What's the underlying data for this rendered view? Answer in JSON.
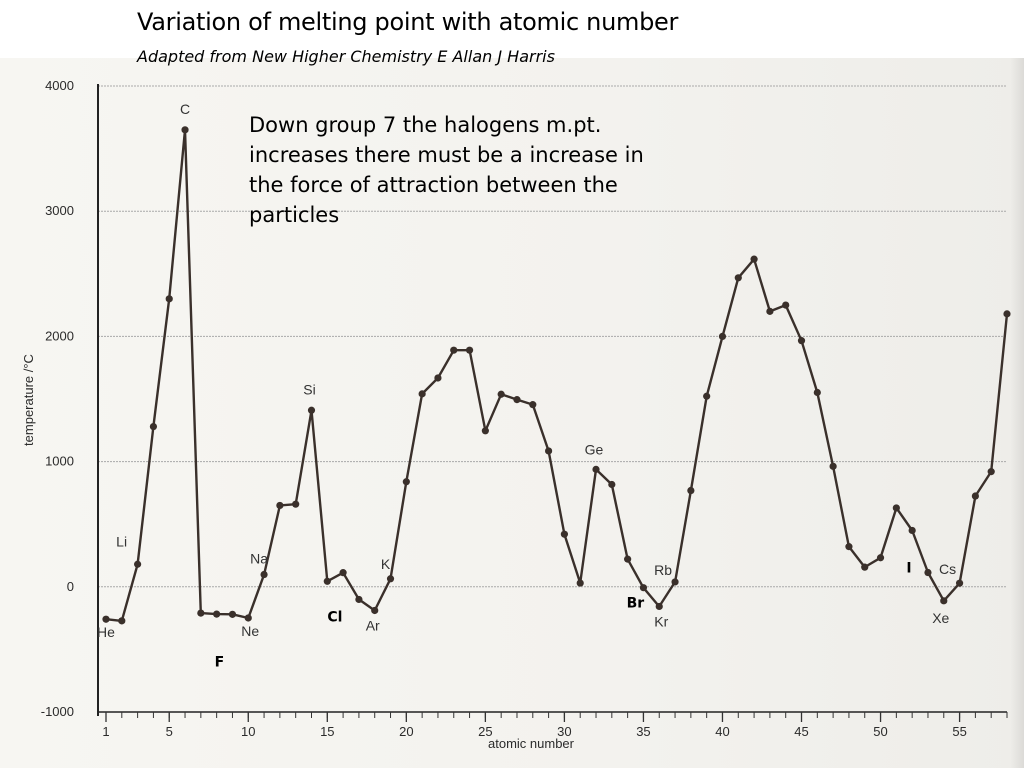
{
  "chart_data": {
    "type": "line",
    "title": "Variation of melting point with atomic number",
    "subtitle": "Adapted from New Higher Chemistry E Allan J Harris",
    "annotation": [
      "Down group 7 the halogens m.pt.",
      "increases there must be a increase in",
      "the force of attraction between the",
      "particles"
    ],
    "xlabel": "atomic number",
    "ylabel": "temperature /°C",
    "xlim": [
      1,
      58
    ],
    "ylim": [
      -1000,
      4000
    ],
    "xticks": [
      "1",
      "5",
      "10",
      "15",
      "20",
      "25",
      "30",
      "35",
      "40",
      "45",
      "50",
      "55"
    ],
    "yticks": [
      "4000",
      "3000",
      "2000",
      "1000",
      "0",
      "-1000"
    ],
    "grid": true,
    "series": [
      {
        "x": [
          1,
          2,
          3,
          4,
          5,
          6,
          7,
          8,
          9,
          10,
          11,
          12,
          13,
          14,
          15,
          16,
          17,
          18,
          19,
          20,
          21,
          22,
          23,
          24,
          25,
          26,
          27,
          28,
          29,
          30,
          31,
          32,
          33,
          34,
          35,
          36,
          37,
          38,
          39,
          40,
          41,
          42,
          43,
          44,
          45,
          46,
          47,
          48,
          49,
          50,
          51,
          52,
          53,
          54,
          55,
          56,
          57,
          58
        ],
        "y": [
          -259,
          -272,
          180,
          1280,
          2300,
          3650,
          -210,
          -218,
          -220,
          -249,
          98,
          650,
          660,
          1410,
          44,
          113,
          -101,
          -189,
          64,
          839,
          1541,
          1668,
          1890,
          1890,
          1246,
          1538,
          1495,
          1455,
          1085,
          420,
          30,
          938,
          817,
          221,
          -7,
          -157,
          39,
          769,
          1522,
          2000,
          2468,
          2617,
          2200,
          2250,
          1966,
          1552,
          962,
          321,
          157,
          232,
          630,
          450,
          114,
          -112,
          29,
          725,
          920,
          2180
        ]
      }
    ],
    "point_labels": [
      {
        "x": 1,
        "text": "He"
      },
      {
        "x": 3,
        "text": "Li"
      },
      {
        "x": 6,
        "text": "C"
      },
      {
        "x": 10,
        "text": "Ne"
      },
      {
        "x": 11,
        "text": "Na"
      },
      {
        "x": 14,
        "text": "Si"
      },
      {
        "x": 18,
        "text": "Ar"
      },
      {
        "x": 19,
        "text": "K"
      },
      {
        "x": 32,
        "text": "Ge"
      },
      {
        "x": 36,
        "text": "Kr"
      },
      {
        "x": 37,
        "text": "Rb"
      },
      {
        "x": 54,
        "text": "Xe"
      },
      {
        "x": 55,
        "text": "Cs"
      }
    ],
    "halogen_labels": [
      {
        "x": 9,
        "text": "F"
      },
      {
        "x": 17,
        "text": "Cl"
      },
      {
        "x": 35,
        "text": "Br"
      },
      {
        "x": 53,
        "text": "I"
      }
    ],
    "line_color": "#3a302b",
    "marker_color": "#3a302b",
    "grid_color": "#a9a9a9"
  }
}
